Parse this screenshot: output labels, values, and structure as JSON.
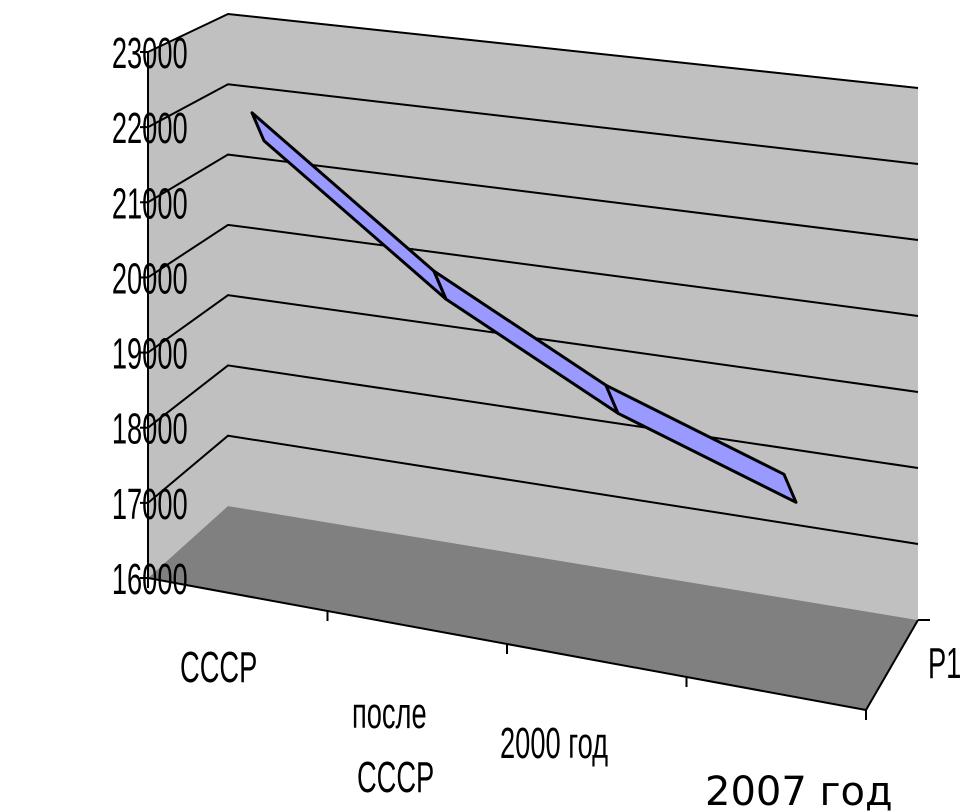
{
  "chart_data": {
    "type": "line",
    "style": "3d-ribbon",
    "categories": [
      "СССР",
      "после СССР",
      "2000 год",
      "2007 год"
    ],
    "series": [
      {
        "name": "Р1",
        "values": [
          22400,
          20300,
          18900,
          17900
        ],
        "color": "#9999ff"
      }
    ],
    "ylim": [
      16000,
      23000
    ],
    "yticks": [
      "16000",
      "17000",
      "18000",
      "19000",
      "20000",
      "21000",
      "22000",
      "23000"
    ],
    "grid": true,
    "colors": {
      "back_wall": "#c0c0c0",
      "side_wall": "#c0c0c0",
      "floor": "#808080",
      "ribbon": "#9999ff"
    }
  }
}
